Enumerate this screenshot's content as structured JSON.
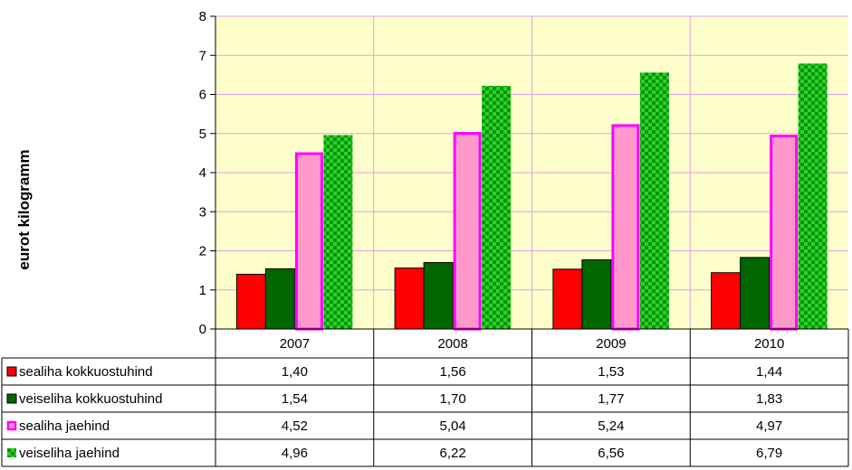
{
  "chart_data": {
    "type": "bar",
    "title": "",
    "xlabel": "",
    "ylabel": "eurot kilogramm",
    "ylim": [
      0,
      8
    ],
    "yticks": [
      "0",
      "1",
      "2",
      "3",
      "4",
      "5",
      "6",
      "7",
      "8"
    ],
    "grid": true,
    "legend_placement": "data-table-left",
    "categories": [
      "2007",
      "2008",
      "2009",
      "2010"
    ],
    "series": [
      {
        "name": "sealiha kokkuostuhind",
        "values": [
          1.4,
          1.56,
          1.53,
          1.44
        ],
        "labels": [
          "1,40",
          "1,56",
          "1,53",
          "1,44"
        ],
        "color": "#ff0000",
        "style": "solid"
      },
      {
        "name": "veiseliha kokkuostuhind",
        "values": [
          1.54,
          1.7,
          1.77,
          1.83
        ],
        "labels": [
          "1,54",
          "1,70",
          "1,77",
          "1,83"
        ],
        "color": "#006600",
        "style": "solid"
      },
      {
        "name": "sealiha jaehind",
        "values": [
          4.52,
          5.04,
          5.24,
          4.97
        ],
        "labels": [
          "4,52",
          "5,04",
          "5,24",
          "4,97"
        ],
        "color": "#ff99cc",
        "border": "#ff00ff",
        "style": "outlined"
      },
      {
        "name": "veiseliha jaehind",
        "values": [
          4.96,
          6.22,
          6.56,
          6.79
        ],
        "labels": [
          "4,96",
          "6,22",
          "6,56",
          "6,79"
        ],
        "color": "#33cc33",
        "pattern_color": "#00aa00",
        "style": "checker"
      }
    ],
    "plot_background": "#ffffcc",
    "grid_color": "#e0a0e0"
  }
}
